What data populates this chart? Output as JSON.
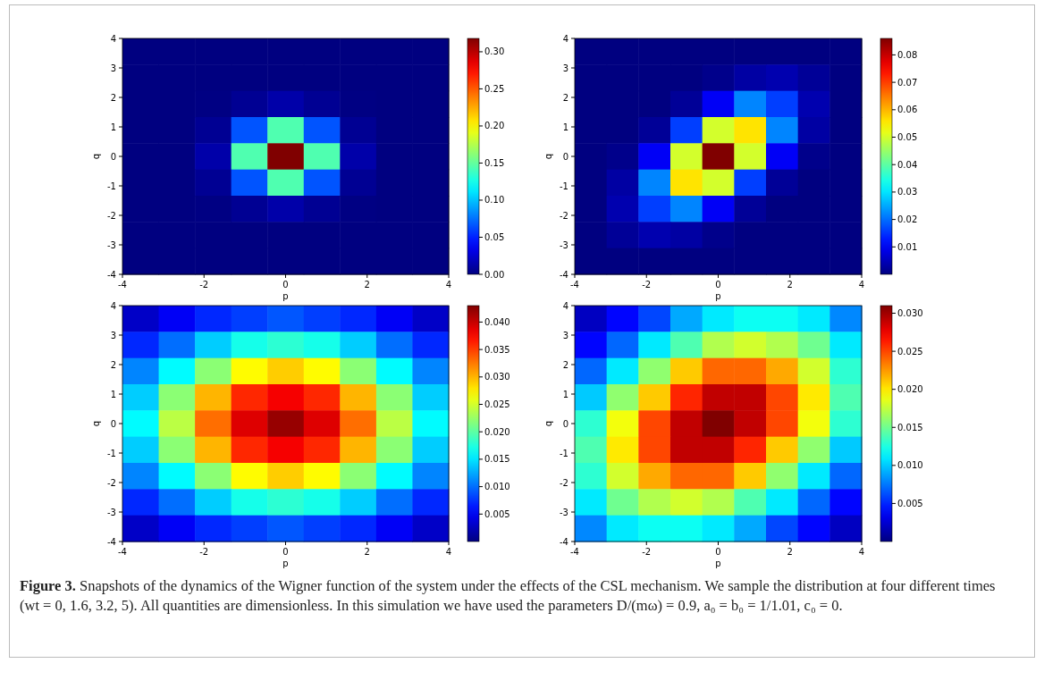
{
  "chart_data": [
    {
      "type": "heatmap",
      "xlabel": "p",
      "ylabel": "q",
      "xlim": [
        -4,
        4
      ],
      "ylim": [
        -4,
        4
      ],
      "xticks": [
        -4,
        -2,
        0,
        2,
        4
      ],
      "yticks": [
        -4,
        -3,
        -2,
        -1,
        0,
        1,
        2,
        3,
        4
      ],
      "clim": [
        0,
        0.318
      ],
      "cticks": [
        {
          "value": 0,
          "label": "0.00"
        },
        0.05,
        {
          "value": 0.1,
          "label": "0.10"
        },
        0.15,
        {
          "value": 0.2,
          "label": "0.20"
        },
        0.25,
        {
          "value": 0.3,
          "label": "0.30"
        }
      ],
      "cells": [
        [
          0,
          0,
          0,
          0,
          0,
          0,
          0,
          0,
          0
        ],
        [
          0,
          0,
          0,
          0,
          0,
          0,
          0,
          0,
          0
        ],
        [
          0,
          0,
          0.001,
          0.006,
          0.013,
          0.006,
          0.001,
          0,
          0
        ],
        [
          0,
          0,
          0.006,
          0.066,
          0.144,
          0.066,
          0.006,
          0,
          0
        ],
        [
          0,
          0,
          0.013,
          0.144,
          0.318,
          0.144,
          0.013,
          0,
          0
        ],
        [
          0,
          0,
          0.006,
          0.066,
          0.144,
          0.066,
          0.006,
          0,
          0
        ],
        [
          0,
          0,
          0.001,
          0.006,
          0.013,
          0.006,
          0.001,
          0,
          0
        ],
        [
          0,
          0,
          0,
          0,
          0,
          0,
          0,
          0,
          0
        ],
        [
          0,
          0,
          0,
          0,
          0,
          0,
          0,
          0,
          0
        ]
      ]
    },
    {
      "type": "heatmap",
      "xlabel": "p",
      "ylabel": "q",
      "xlim": [
        -4,
        4
      ],
      "ylim": [
        -4,
        4
      ],
      "xticks": [
        -4,
        -2,
        0,
        2,
        4
      ],
      "yticks": [
        -4,
        -3,
        -2,
        -1,
        0,
        1,
        2,
        3,
        4
      ],
      "clim": [
        0,
        0.086
      ],
      "cticks": [
        0.01,
        0.02,
        0.03,
        0.04,
        0.05,
        0.06,
        0.07,
        0.08
      ],
      "cells": [
        [
          0,
          0,
          0,
          0,
          0,
          0,
          0,
          0,
          0
        ],
        [
          0,
          0,
          0,
          0,
          0.001,
          0.003,
          0.004,
          0.002,
          0
        ],
        [
          0,
          0,
          0,
          0.002,
          0.01,
          0.022,
          0.016,
          0.004,
          0
        ],
        [
          0,
          0,
          0.002,
          0.016,
          0.05,
          0.056,
          0.022,
          0.003,
          0
        ],
        [
          0,
          0.001,
          0.01,
          0.05,
          0.086,
          0.05,
          0.01,
          0.001,
          0
        ],
        [
          0,
          0.003,
          0.022,
          0.056,
          0.05,
          0.016,
          0.002,
          0,
          0
        ],
        [
          0,
          0.004,
          0.016,
          0.022,
          0.01,
          0.002,
          0,
          0,
          0
        ],
        [
          0,
          0.002,
          0.004,
          0.003,
          0.001,
          0,
          0,
          0,
          0
        ],
        [
          0,
          0,
          0,
          0,
          0,
          0,
          0,
          0,
          0
        ]
      ]
    },
    {
      "type": "heatmap",
      "xlabel": "p",
      "ylabel": "q",
      "xlim": [
        -4,
        4
      ],
      "ylim": [
        -4,
        4
      ],
      "xticks": [
        -4,
        -2,
        0,
        2,
        4
      ],
      "yticks": [
        -4,
        -3,
        -2,
        -1,
        0,
        1,
        2,
        3,
        4
      ],
      "clim": [
        0,
        0.043
      ],
      "cticks": [
        0.005,
        {
          "value": 0.01,
          "label": "0.010"
        },
        0.015,
        {
          "value": 0.02,
          "label": "0.020"
        },
        0.025,
        {
          "value": 0.03,
          "label": "0.030"
        },
        0.035,
        {
          "value": 0.04,
          "label": "0.040"
        }
      ],
      "cells": [
        [
          0.003,
          0.005,
          0.007,
          0.008,
          0.009,
          0.008,
          0.007,
          0.005,
          0.003
        ],
        [
          0.007,
          0.01,
          0.014,
          0.017,
          0.018,
          0.017,
          0.014,
          0.01,
          0.007
        ],
        [
          0.011,
          0.016,
          0.022,
          0.027,
          0.029,
          0.027,
          0.022,
          0.016,
          0.011
        ],
        [
          0.014,
          0.022,
          0.03,
          0.036,
          0.038,
          0.036,
          0.03,
          0.022,
          0.014
        ],
        [
          0.016,
          0.024,
          0.033,
          0.039,
          0.042,
          0.039,
          0.033,
          0.024,
          0.016
        ],
        [
          0.014,
          0.022,
          0.03,
          0.036,
          0.038,
          0.036,
          0.03,
          0.022,
          0.014
        ],
        [
          0.011,
          0.016,
          0.022,
          0.027,
          0.029,
          0.027,
          0.022,
          0.016,
          0.011
        ],
        [
          0.007,
          0.01,
          0.014,
          0.017,
          0.018,
          0.017,
          0.014,
          0.01,
          0.007
        ],
        [
          0.003,
          0.005,
          0.007,
          0.008,
          0.009,
          0.008,
          0.007,
          0.005,
          0.003
        ]
      ]
    },
    {
      "type": "heatmap",
      "xlabel": "p",
      "ylabel": "q",
      "xlim": [
        -4,
        4
      ],
      "ylim": [
        -4,
        4
      ],
      "xticks": [
        -4,
        -2,
        0,
        2,
        4
      ],
      "yticks": [
        -4,
        -3,
        -2,
        -1,
        0,
        1,
        2,
        3,
        4
      ],
      "clim": [
        0,
        0.031
      ],
      "cticks": [
        0.005,
        {
          "value": 0.01,
          "label": "0.010"
        },
        0.015,
        {
          "value": 0.02,
          "label": "0.020"
        },
        0.025,
        {
          "value": 0.03,
          "label": "0.030"
        }
      ],
      "cells": [
        [
          0.002,
          0.004,
          0.006,
          0.009,
          0.011,
          0.012,
          0.012,
          0.011,
          0.008
        ],
        [
          0.004,
          0.007,
          0.011,
          0.014,
          0.017,
          0.018,
          0.017,
          0.015,
          0.011
        ],
        [
          0.007,
          0.011,
          0.016,
          0.021,
          0.024,
          0.024,
          0.022,
          0.018,
          0.013
        ],
        [
          0.01,
          0.016,
          0.021,
          0.026,
          0.029,
          0.029,
          0.025,
          0.02,
          0.014
        ],
        [
          0.013,
          0.019,
          0.025,
          0.029,
          0.031,
          0.029,
          0.025,
          0.019,
          0.013
        ],
        [
          0.014,
          0.02,
          0.025,
          0.029,
          0.029,
          0.026,
          0.021,
          0.016,
          0.01
        ],
        [
          0.013,
          0.018,
          0.022,
          0.024,
          0.024,
          0.021,
          0.016,
          0.011,
          0.007
        ],
        [
          0.011,
          0.015,
          0.017,
          0.018,
          0.017,
          0.014,
          0.011,
          0.007,
          0.004
        ],
        [
          0.008,
          0.011,
          0.012,
          0.012,
          0.011,
          0.009,
          0.006,
          0.004,
          0.002
        ]
      ],
      "annotations": [
        "Figure 3.",
        "Snapshots of the dynamics of the Wigner function of the system under the effects of the CSL mechanism. We sample the distribution at four different times (wt = 0, 1.6, 3.2, 5). All quantities are dimensionless. In this simulation we have used the parameters D/(mω) = 0.9, a₀ = b₀ = 1/1.01, c₀ = 0."
      ]
    }
  ]
}
